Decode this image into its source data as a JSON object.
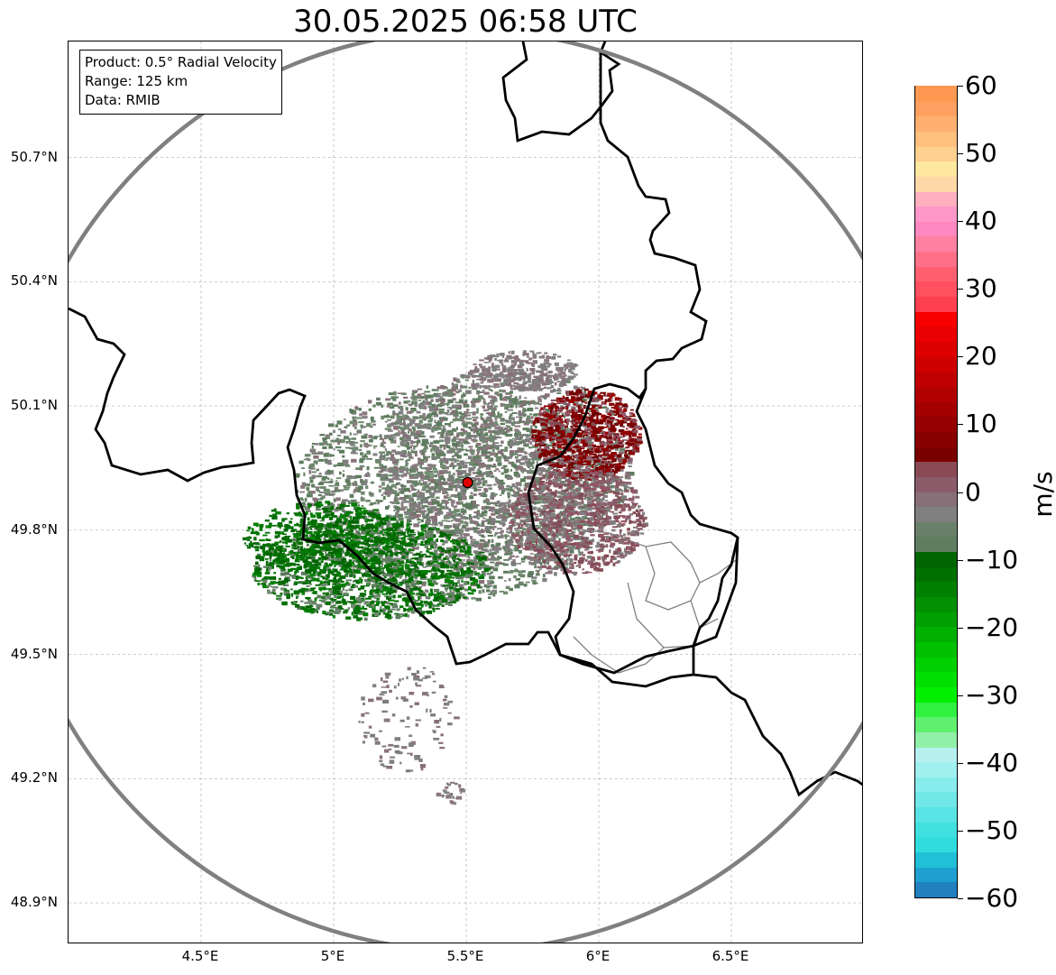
{
  "title": "30.05.2025 06:58 UTC",
  "info": {
    "product": "Product: 0.5° Radial Velocity",
    "range": "Range: 125 km",
    "data": "Data: RMIB"
  },
  "map": {
    "lon_range": [
      4.0,
      7.0
    ],
    "lat_range": [
      48.8,
      50.98
    ],
    "lat_ticks": [
      {
        "value": 48.9,
        "label": "48.9°N"
      },
      {
        "value": 49.2,
        "label": "49.2°N"
      },
      {
        "value": 49.5,
        "label": "49.5°N"
      },
      {
        "value": 49.8,
        "label": "49.8°N"
      },
      {
        "value": 50.1,
        "label": "50.1°N"
      },
      {
        "value": 50.4,
        "label": "50.4°N"
      },
      {
        "value": 50.7,
        "label": "50.7°N"
      }
    ],
    "lon_ticks": [
      {
        "value": 4.5,
        "label": "4.5°E"
      },
      {
        "value": 5.0,
        "label": "5°E"
      },
      {
        "value": 5.5,
        "label": "5.5°E"
      },
      {
        "value": 6.0,
        "label": "6°E"
      },
      {
        "value": 6.5,
        "label": "6.5°E"
      }
    ],
    "radar_site": {
      "lon": 5.505,
      "lat": 49.915,
      "color": "#e00000"
    },
    "range_ring_color": "#808080",
    "border_color": "#000000",
    "gridline_color": "#b0b0b0"
  },
  "colorbar": {
    "unit": "m/s",
    "min": -60,
    "max": 60,
    "ticks": [
      {
        "value": 60,
        "label": "60"
      },
      {
        "value": 50,
        "label": "50"
      },
      {
        "value": 40,
        "label": "40"
      },
      {
        "value": 30,
        "label": "30"
      },
      {
        "value": 20,
        "label": "20"
      },
      {
        "value": 10,
        "label": "10"
      },
      {
        "value": 0,
        "label": "0"
      },
      {
        "value": -10,
        "label": "−10"
      },
      {
        "value": -20,
        "label": "−20"
      },
      {
        "value": -30,
        "label": "−30"
      },
      {
        "value": -40,
        "label": "−40"
      },
      {
        "value": -50,
        "label": "−50"
      },
      {
        "value": -60,
        "label": "−60"
      }
    ],
    "colors": [
      "#2080c0",
      "#20a0d0",
      "#20c0d8",
      "#30dcdc",
      "#40e0e0",
      "#58e4e4",
      "#70e8e8",
      "#88ecec",
      "#a0f0f0",
      "#b8f0f0",
      "#90f0a8",
      "#60f070",
      "#30f040",
      "#00f000",
      "#00e000",
      "#00d000",
      "#00c000",
      "#00b000",
      "#00a000",
      "#009000",
      "#008000",
      "#007000",
      "#006400",
      "#607d60",
      "#6a806a",
      "#808080",
      "#887078",
      "#8a5c6a",
      "#8a4a55",
      "#7a0000",
      "#880000",
      "#960000",
      "#a40000",
      "#b20000",
      "#c00000",
      "#ce0000",
      "#dc0000",
      "#ea0000",
      "#f80000",
      "#ff4050",
      "#ff5060",
      "#ff6070",
      "#ff7088",
      "#ff80a0",
      "#ff88c0",
      "#ff98c8",
      "#ffb0c0",
      "#ffd8a8",
      "#ffe8a0",
      "#ffd090",
      "#ffc080",
      "#ffb070",
      "#ffa060",
      "#ff9850"
    ]
  }
}
